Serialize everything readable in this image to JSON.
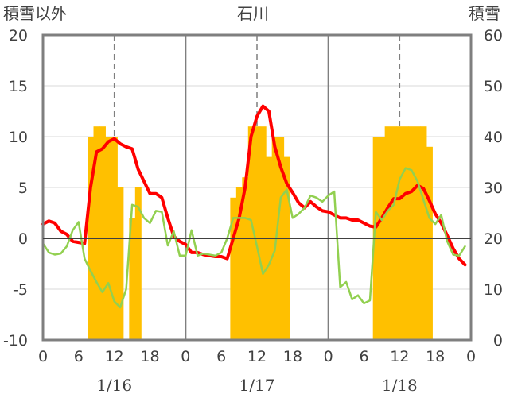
{
  "chart_data": {
    "type": "bar+line",
    "title": "石川",
    "left_axis_label": "積雪以外",
    "right_axis_label": "積雪",
    "left_ylim": [
      -10,
      20
    ],
    "left_yticks": [
      "20",
      "15",
      "10",
      "5",
      "0",
      "-5",
      "-10"
    ],
    "right_ylim": [
      0,
      60
    ],
    "right_yticks": [
      "60",
      "50",
      "40",
      "30",
      "20",
      "10",
      "0"
    ],
    "x_tick_labels": [
      "0",
      "6",
      "12",
      "18",
      "0",
      "6",
      "12",
      "18",
      "0",
      "6",
      "12",
      "18",
      "0"
    ],
    "day_labels": [
      "1/16",
      "1/17",
      "1/18"
    ],
    "grid": "dashed vertical lines at 12h, solid day separators",
    "series": [
      {
        "type": "bar",
        "axis": "right",
        "color": "#ffc000",
        "x": [
          8,
          9,
          10,
          11,
          12,
          13,
          15,
          16,
          32,
          33,
          34,
          35,
          36,
          37,
          38,
          39,
          40,
          41,
          56,
          57,
          58,
          59,
          60,
          61,
          62,
          63,
          64,
          65
        ],
        "values": [
          40,
          42,
          42,
          40,
          40,
          30,
          24,
          30,
          28,
          30,
          32,
          42,
          42,
          42,
          36,
          40,
          40,
          36,
          40,
          40,
          42,
          42,
          42,
          42,
          42,
          42,
          42,
          38
        ]
      },
      {
        "type": "line",
        "axis": "left",
        "color": "#ff0000",
        "x": [
          0,
          1,
          2,
          3,
          4,
          5,
          6,
          7,
          8,
          9,
          10,
          11,
          12,
          13,
          14,
          15,
          16,
          17,
          18,
          19,
          20,
          21,
          22,
          23,
          24,
          25,
          26,
          27,
          28,
          29,
          30,
          31,
          32,
          33,
          34,
          35,
          36,
          37,
          38,
          39,
          40,
          41,
          42,
          43,
          44,
          45,
          46,
          47,
          48,
          49,
          50,
          51,
          52,
          53,
          54,
          55,
          56,
          57,
          58,
          59,
          60,
          61,
          62,
          63,
          64,
          65,
          66,
          67,
          68,
          69,
          70,
          71
        ],
        "values": [
          1.4,
          1.7,
          1.5,
          0.7,
          0.4,
          -0.3,
          -0.4,
          -0.5,
          5.0,
          8.5,
          8.8,
          9.5,
          9.8,
          9.3,
          9.0,
          8.8,
          6.8,
          5.6,
          4.4,
          4.4,
          4.0,
          2.0,
          0.2,
          -0.3,
          -0.6,
          -1.4,
          -1.4,
          -1.6,
          -1.7,
          -1.8,
          -1.8,
          -2.0,
          0.0,
          2.0,
          5.0,
          10.0,
          12.0,
          13.0,
          12.5,
          9.0,
          7.0,
          5.4,
          4.5,
          3.5,
          3.0,
          3.6,
          3.1,
          2.7,
          2.6,
          2.3,
          2.0,
          2.0,
          1.8,
          1.8,
          1.5,
          1.2,
          1.1,
          2.0,
          3.0,
          3.9,
          3.9,
          4.4,
          4.6,
          5.2,
          4.9,
          3.7,
          2.4,
          1.5,
          0.3,
          -1.0,
          -2.0,
          -2.6
        ]
      },
      {
        "type": "line",
        "axis": "left",
        "color": "#92d050",
        "x": [
          0,
          1,
          2,
          3,
          4,
          5,
          6,
          7,
          8,
          9,
          10,
          11,
          12,
          13,
          14,
          15,
          16,
          17,
          18,
          19,
          20,
          21,
          22,
          23,
          24,
          25,
          26,
          27,
          28,
          29,
          30,
          31,
          32,
          33,
          34,
          35,
          36,
          37,
          38,
          39,
          40,
          41,
          42,
          43,
          44,
          45,
          46,
          47,
          48,
          49,
          50,
          51,
          52,
          53,
          54,
          55,
          56,
          57,
          58,
          59,
          60,
          61,
          62,
          63,
          64,
          65,
          66,
          67,
          68,
          69,
          70,
          71
        ],
        "values": [
          -0.5,
          -1.4,
          -1.6,
          -1.5,
          -0.8,
          0.8,
          1.6,
          -2.0,
          -3.2,
          -4.3,
          -5.3,
          -4.4,
          -6.2,
          -6.8,
          -5.0,
          3.3,
          3.1,
          2.0,
          1.5,
          2.7,
          2.6,
          -0.7,
          0.7,
          -1.7,
          -1.7,
          0.8,
          -1.7,
          -1.5,
          -1.6,
          -1.7,
          -1.4,
          0.0,
          2.0,
          2.0,
          2.0,
          1.8,
          -0.8,
          -3.5,
          -2.6,
          -1.2,
          4.0,
          4.8,
          2.0,
          2.4,
          3.0,
          4.2,
          4.0,
          3.6,
          4.2,
          4.6,
          -4.8,
          -4.3,
          -6.0,
          -5.6,
          -6.4,
          -6.1,
          2.6,
          1.8,
          2.7,
          3.3,
          5.8,
          6.9,
          6.7,
          5.6,
          3.8,
          2.0,
          1.4,
          2.3,
          -0.3,
          -1.6,
          -1.7,
          -0.8
        ]
      },
      {
        "type": "line",
        "axis": "left",
        "color": "#7030a0",
        "x": [
          0,
          72
        ],
        "values": [
          -10,
          -10
        ]
      }
    ]
  }
}
